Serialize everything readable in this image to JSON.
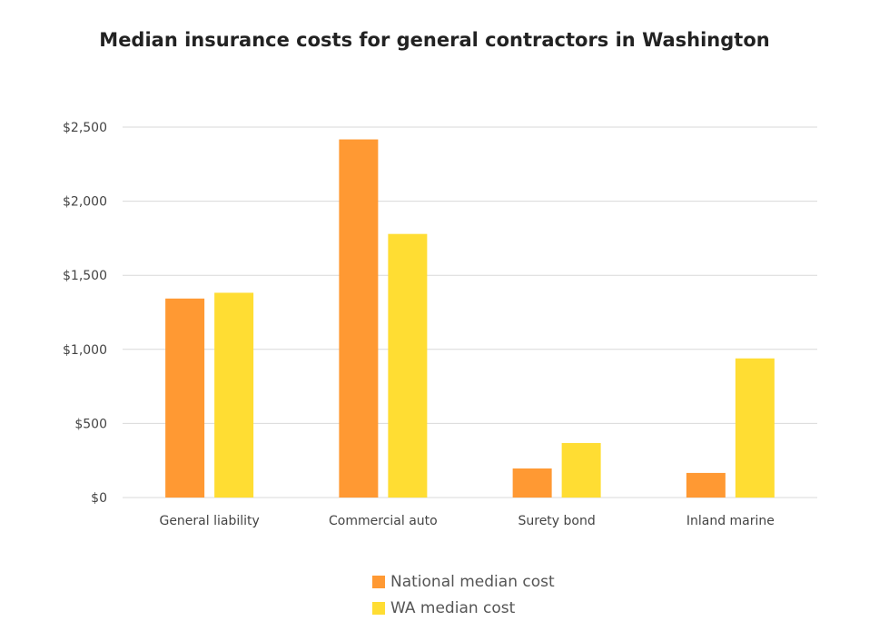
{
  "chart_data": {
    "type": "bar",
    "title": "Median insurance costs for general contractors in Washington",
    "xlabel": "",
    "ylabel": "",
    "categories": [
      "General liability",
      "Commercial auto",
      "Surety bond",
      "Inland marine"
    ],
    "series": [
      {
        "name": "National median cost",
        "color": "#FF9933",
        "values": [
          1343,
          2417,
          196,
          166
        ]
      },
      {
        "name": "WA median cost",
        "color": "#FFDD33",
        "values": [
          1382,
          1779,
          368,
          939
        ]
      }
    ],
    "ylim": [
      0,
      2500
    ],
    "yticks": [
      0,
      500,
      1000,
      1500,
      2000,
      2500
    ],
    "ytick_labels": [
      "$0",
      "$500",
      "$1,000",
      "$1,500",
      "$2,000",
      "$2,500"
    ],
    "grid": true,
    "legend_position": "bottom"
  }
}
